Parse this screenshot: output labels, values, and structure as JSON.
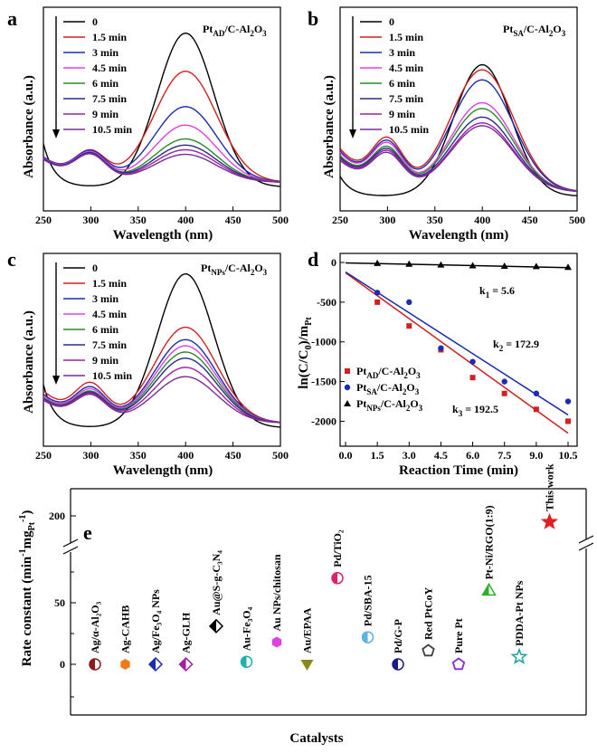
{
  "chart_data": [
    {
      "panel": "a",
      "type": "line",
      "title_main": "Pt",
      "title_sub": "AD",
      "title_tail": "/C-Al",
      "title_sub2": "2",
      "title_tail2": "O",
      "title_sub3": "3",
      "xlabel": "Wavelength (nm)",
      "ylabel": "Absorbance (a.u.)",
      "xlim": [
        250,
        500
      ],
      "xticks": [
        "250",
        "300",
        "350",
        "400",
        "450",
        "500"
      ],
      "legend": [
        "0",
        "1.5 min",
        "3 min",
        "4.5 min",
        "6 min",
        "7.5 min",
        "9 min",
        "10.5 min"
      ],
      "colors": [
        "#000000",
        "#d02020",
        "#1a2cb0",
        "#e040e0",
        "#2a8a2a",
        "#2a2a8a",
        "#a020a0",
        "#7a2a9a"
      ],
      "peak400": [
        1.0,
        0.72,
        0.49,
        0.37,
        0.28,
        0.24,
        0.21,
        0.18
      ],
      "peak300": [
        0.22,
        0.3,
        0.3,
        0.29,
        0.28,
        0.28,
        0.27,
        0.27
      ]
    },
    {
      "panel": "b",
      "type": "line",
      "title_main": "Pt",
      "title_sub": "SA",
      "title_tail": "/C-Al",
      "title_sub2": "2",
      "title_tail2": "O",
      "title_sub3": "3",
      "xlabel": "Wavelength (nm)",
      "ylabel": "Absorbance (a.u.)",
      "xlim": [
        250,
        500
      ],
      "xticks": [
        "250",
        "300",
        "350",
        "400",
        "450",
        "500"
      ],
      "legend": [
        "0",
        "1.5 min",
        "3 min",
        "4.5 min",
        "6 min",
        "7.5 min",
        "9 min",
        "10.5 min"
      ],
      "colors": [
        "#000000",
        "#d02020",
        "#1a2cb0",
        "#e040e0",
        "#2a8a2a",
        "#2a2a8a",
        "#a020a0",
        "#7a2a9a"
      ],
      "peak400": [
        0.92,
        0.85,
        0.78,
        0.62,
        0.58,
        0.52,
        0.48,
        0.46
      ],
      "peak300": [
        0.12,
        0.55,
        0.52,
        0.5,
        0.46,
        0.44,
        0.42,
        0.4
      ]
    },
    {
      "panel": "c",
      "type": "line",
      "title_main": "Pt",
      "title_sub": "NPs",
      "title_tail": "/C-Al",
      "title_sub2": "2",
      "title_tail2": "O",
      "title_sub3": "3",
      "xlabel": "Wavelength (nm)",
      "ylabel": "Absorbance (a.u.)",
      "xlim": [
        250,
        500
      ],
      "xticks": [
        "250",
        "300",
        "350",
        "400",
        "450",
        "500"
      ],
      "legend": [
        "0",
        "1.5 min",
        "3 min",
        "4.5 min",
        "6 min",
        "7.5 min",
        "9 min",
        "10.5 min"
      ],
      "colors": [
        "#000000",
        "#d02020",
        "#1a2cb0",
        "#e040e0",
        "#2a8a2a",
        "#2a2a8a",
        "#a020a0",
        "#7a2a9a"
      ],
      "peak400": [
        1.0,
        0.62,
        0.54,
        0.5,
        0.46,
        0.42,
        0.36,
        0.3
      ],
      "peak300": [
        0.1,
        0.38,
        0.34,
        0.32,
        0.3,
        0.29,
        0.28,
        0.27
      ]
    },
    {
      "panel": "d",
      "type": "scatter",
      "xlabel": "Reaction Time (min)",
      "ylabel_main": "ln(C/C",
      "ylabel_sub": "0",
      "ylabel_mid": ")/m",
      "ylabel_sub2": "Pt",
      "xlim": [
        0,
        10.5
      ],
      "ylim": [
        -2200,
        0
      ],
      "xticks": [
        "0.0",
        "1.5",
        "3.0",
        "4.5",
        "6.0",
        "7.5",
        "9.0",
        "10.5"
      ],
      "yticks": [
        "0",
        "-500",
        "-1000",
        "-1500",
        "-2000"
      ],
      "x": [
        1.5,
        3.0,
        4.5,
        6.0,
        7.5,
        9.0,
        10.5
      ],
      "series": [
        {
          "name_main": "Pt",
          "name_sub": "AD",
          "name_tail": "/C-Al",
          "name_sub2": "2",
          "name_tail2": "O",
          "name_sub3": "3",
          "color": "#d02020",
          "marker": "square",
          "values": [
            -500,
            -800,
            -1100,
            -1450,
            -1650,
            -1850,
            -2000
          ],
          "fit": [
            -130,
            -2150
          ]
        },
        {
          "name_main": "Pt",
          "name_sub": "SA",
          "name_tail": "/C-Al",
          "name_sub2": "2",
          "name_tail2": "O",
          "name_sub3": "3",
          "color": "#1a2cb0",
          "marker": "circle",
          "values": [
            -380,
            -500,
            -1080,
            -1250,
            -1500,
            -1650,
            -1750
          ],
          "fit": [
            -120,
            -1920
          ]
        },
        {
          "name_main": "Pt",
          "name_sub": "NPs",
          "name_tail": "/C-Al",
          "name_sub2": "2",
          "name_tail2": "O",
          "name_sub3": "3",
          "color": "#000000",
          "marker": "triangle",
          "values": [
            -10,
            -20,
            -30,
            -40,
            -45,
            -50,
            -60
          ],
          "fit": [
            -5,
            -65
          ]
        }
      ],
      "k_labels": [
        {
          "main": "k",
          "sub": "1",
          "tail": " = 5.6",
          "color": "#000000"
        },
        {
          "main": "k",
          "sub": "2",
          "tail": " = 172.9",
          "color": "#1a2cb0"
        },
        {
          "main": "k",
          "sub": "3",
          "tail": " = 192.5",
          "color": "#d02020"
        }
      ]
    },
    {
      "panel": "e",
      "type": "scatter",
      "xlabel": "Catalysts",
      "ylabel_main": "Rate constant (min",
      "ylabel_sup": "-1",
      "ylabel_mid": "mg",
      "ylabel_sub": "Pt",
      "ylabel_sup2": "-1",
      "ylabel_end": ")",
      "yticks_low": [
        "0",
        "50"
      ],
      "yticks_high": [
        "200"
      ],
      "items": [
        {
          "label": "Ag/α-Al₂O₃",
          "value": 0,
          "color": "#8b1a1a",
          "marker": "half-circle"
        },
        {
          "label": "Ag-CAHB",
          "value": 0,
          "color": "#f07a1a",
          "marker": "hexagon"
        },
        {
          "label": "Ag/Fe₃O₄ NPs",
          "value": 0,
          "color": "#1a2cb0",
          "marker": "half-diamond"
        },
        {
          "label": "Ag-GLH",
          "value": 0,
          "color": "#a020a0",
          "marker": "half-diamond"
        },
        {
          "label": "Au@S-g-C₃N₄",
          "value": 31,
          "color": "#000000",
          "marker": "half-diamond"
        },
        {
          "label": "Au-Fe₃O₄",
          "value": 2,
          "color": "#20b0b0",
          "marker": "half-circle"
        },
        {
          "label": "Au NPs/chitosan",
          "value": 18,
          "color": "#e040e0",
          "marker": "hexagon"
        },
        {
          "label": "Au/EPAA",
          "value": 0,
          "color": "#8a8a1a",
          "marker": "triangle-down"
        },
        {
          "label": "Pd/TiO₂",
          "value": 70,
          "color": "#e0206a",
          "marker": "half-circle"
        },
        {
          "label": "Pd/SBA-15",
          "value": 22,
          "color": "#60b0e0",
          "marker": "half-circle"
        },
        {
          "label": "Pd/G-P",
          "value": 0,
          "color": "#1a1a8a",
          "marker": "half-circle"
        },
        {
          "label": "Red PtCoY",
          "value": 11,
          "color": "#404040",
          "marker": "pentagon"
        },
        {
          "label": "Pure Pt",
          "value": 0,
          "color": "#8a2ad0",
          "marker": "pentagon"
        },
        {
          "label": "Pt-Ni/RGO(1:9)",
          "value": 60,
          "color": "#2ab02a",
          "marker": "triangle"
        },
        {
          "label": "PDDA-Pt NPs",
          "value": 6,
          "color": "#20a0a0",
          "marker": "star-open"
        },
        {
          "label": "This work",
          "value": 192.5,
          "color": "#e02020",
          "marker": "star"
        }
      ]
    }
  ]
}
